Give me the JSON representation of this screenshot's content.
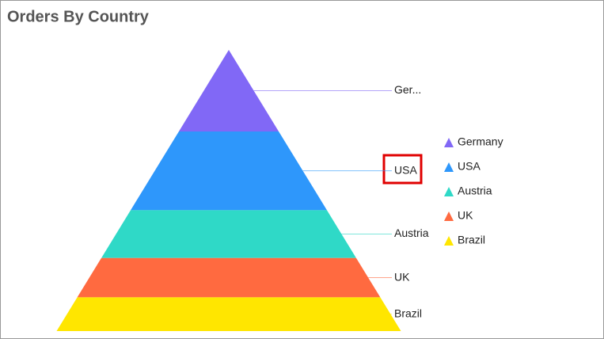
{
  "chart_data": {
    "type": "pyramid",
    "title": "Orders By Country",
    "categories": [
      "Germany",
      "USA",
      "Austria",
      "UK",
      "Brazil"
    ],
    "values": [
      29,
      28,
      17,
      14,
      12
    ],
    "data_labels": [
      "Ger...",
      "USA",
      "Austria",
      "UK",
      "Brazil"
    ],
    "colors": [
      "#8168f6",
      "#2e97fb",
      "#2fd9c7",
      "#ff6a40",
      "#ffe600"
    ],
    "legend": "right"
  }
}
